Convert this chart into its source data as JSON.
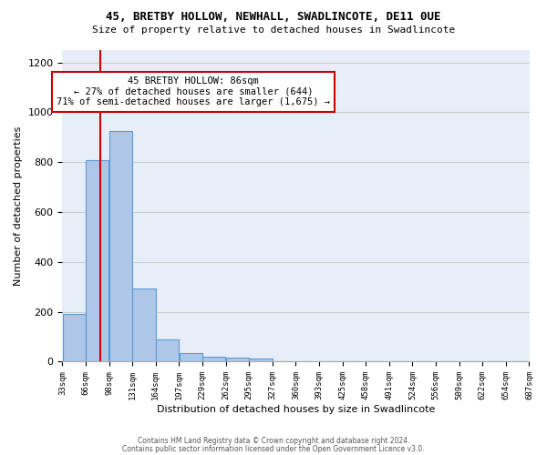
{
  "title1": "45, BRETBY HOLLOW, NEWHALL, SWADLINCOTE, DE11 0UE",
  "title2": "Size of property relative to detached houses in Swadlincote",
  "xlabel": "Distribution of detached houses by size in Swadlincote",
  "ylabel": "Number of detached properties",
  "bin_edges": [
    33,
    66,
    99,
    132,
    165,
    198,
    231,
    264,
    297,
    330,
    363,
    396,
    429,
    462,
    495,
    528,
    561,
    594,
    627,
    660,
    693
  ],
  "bin_labels": [
    "33sqm",
    "66sqm",
    "98sqm",
    "131sqm",
    "164sqm",
    "197sqm",
    "229sqm",
    "262sqm",
    "295sqm",
    "327sqm",
    "360sqm",
    "393sqm",
    "425sqm",
    "458sqm",
    "491sqm",
    "524sqm",
    "556sqm",
    "589sqm",
    "622sqm",
    "654sqm",
    "687sqm"
  ],
  "bar_heights": [
    193,
    810,
    924,
    293,
    88,
    35,
    20,
    18,
    12,
    0,
    0,
    0,
    0,
    0,
    0,
    0,
    0,
    0,
    0,
    0
  ],
  "bar_color": "#aec6e8",
  "bar_edge_color": "#5a9bd5",
  "vline_x": 86,
  "vline_color": "#cc0000",
  "annotation_text": "45 BRETBY HOLLOW: 86sqm\n← 27% of detached houses are smaller (644)\n71% of semi-detached houses are larger (1,675) →",
  "annotation_box_color": "#cc0000",
  "annotation_fill_color": "#ffffff",
  "ylim": [
    0,
    1250
  ],
  "yticks": [
    0,
    200,
    400,
    600,
    800,
    1000,
    1200
  ],
  "grid_color": "#cccccc",
  "background_color": "#e8eef8",
  "footer1": "Contains HM Land Registry data © Crown copyright and database right 2024.",
  "footer2": "Contains public sector information licensed under the Open Government Licence v3.0."
}
